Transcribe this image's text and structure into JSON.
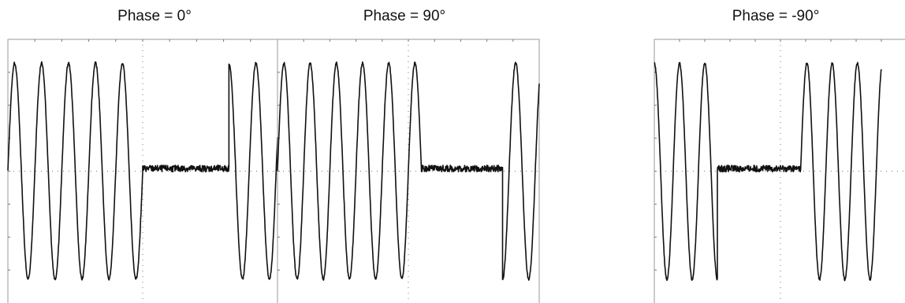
{
  "chart_data": [
    {
      "type": "line",
      "title": "Phase = 0°",
      "xlabel": "",
      "ylabel": "",
      "grid": true,
      "ylim": [
        -1.0,
        1.0
      ],
      "series": [
        {
          "segments": [
            {
              "kind": "sine",
              "t_start": 0.0,
              "t_end": 5.0,
              "amplitude": 0.82,
              "phase_deg": 0
            },
            {
              "kind": "flat",
              "t_start": 5.0,
              "t_end": 8.2,
              "value": 0.02
            },
            {
              "kind": "sine",
              "t_start": 8.2,
              "t_end": 10.0,
              "amplitude": 0.82,
              "phase_deg": 90
            }
          ]
        }
      ]
    },
    {
      "type": "line",
      "title": "Phase = 90°",
      "xlabel": "",
      "ylabel": "",
      "grid": true,
      "ylim": [
        -1.0,
        1.0
      ],
      "series": [
        {
          "segments": [
            {
              "kind": "sine",
              "t_start": 0.0,
              "t_end": 5.5,
              "amplitude": 0.82,
              "phase_deg": 0
            },
            {
              "kind": "flat",
              "t_start": 5.5,
              "t_end": 8.6,
              "value": 0.02
            },
            {
              "kind": "sine",
              "t_start": 8.6,
              "t_end": 10.0,
              "amplitude": 0.82,
              "phase_deg": -90
            }
          ]
        }
      ]
    },
    {
      "type": "line",
      "title": "Phase = -90°",
      "xlabel": "",
      "ylabel": "",
      "grid": true,
      "ylim": [
        -1.0,
        1.0
      ],
      "series": [
        {
          "segments": [
            {
              "kind": "sine",
              "t_start": 0.0,
              "t_end": 2.5,
              "amplitude": 0.82,
              "phase_deg": 90
            },
            {
              "kind": "flat",
              "t_start": 2.5,
              "t_end": 5.8,
              "value": 0.02
            },
            {
              "kind": "sine",
              "t_start": 5.8,
              "t_end": 9.0,
              "amplitude": 0.82,
              "phase_deg": 0
            }
          ]
        }
      ]
    }
  ]
}
